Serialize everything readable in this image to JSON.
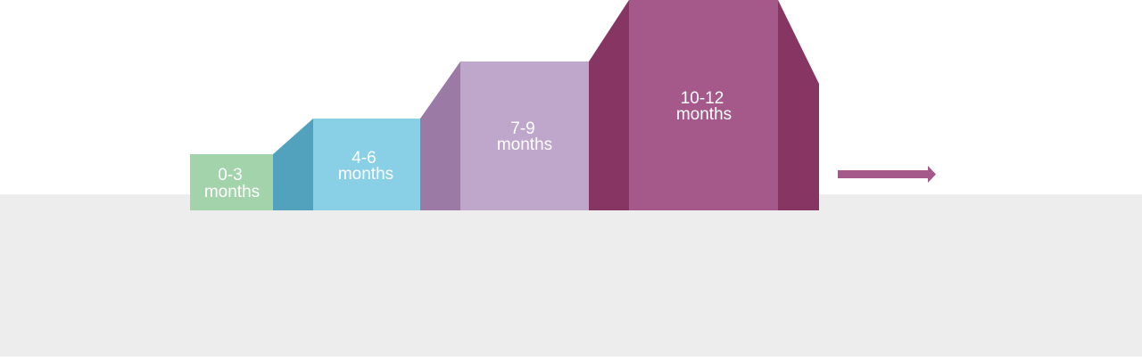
{
  "colors": {
    "background_top": "#ffffff",
    "background_floor": "#ededed",
    "arrow": "#a5588a"
  },
  "steps": [
    {
      "line1": "0-3",
      "line2": "months",
      "front": "#a3d3ab",
      "side": null
    },
    {
      "line1": "4-6",
      "line2": "months",
      "front": "#89cfe6",
      "side": "#52a2be"
    },
    {
      "line1": "7-9",
      "line2": "months",
      "front": "#bea7ca",
      "side": "#9b7ba6"
    },
    {
      "line1": "10-12",
      "line2": "months",
      "front": "#a5588a",
      "side": "#873663"
    }
  ]
}
